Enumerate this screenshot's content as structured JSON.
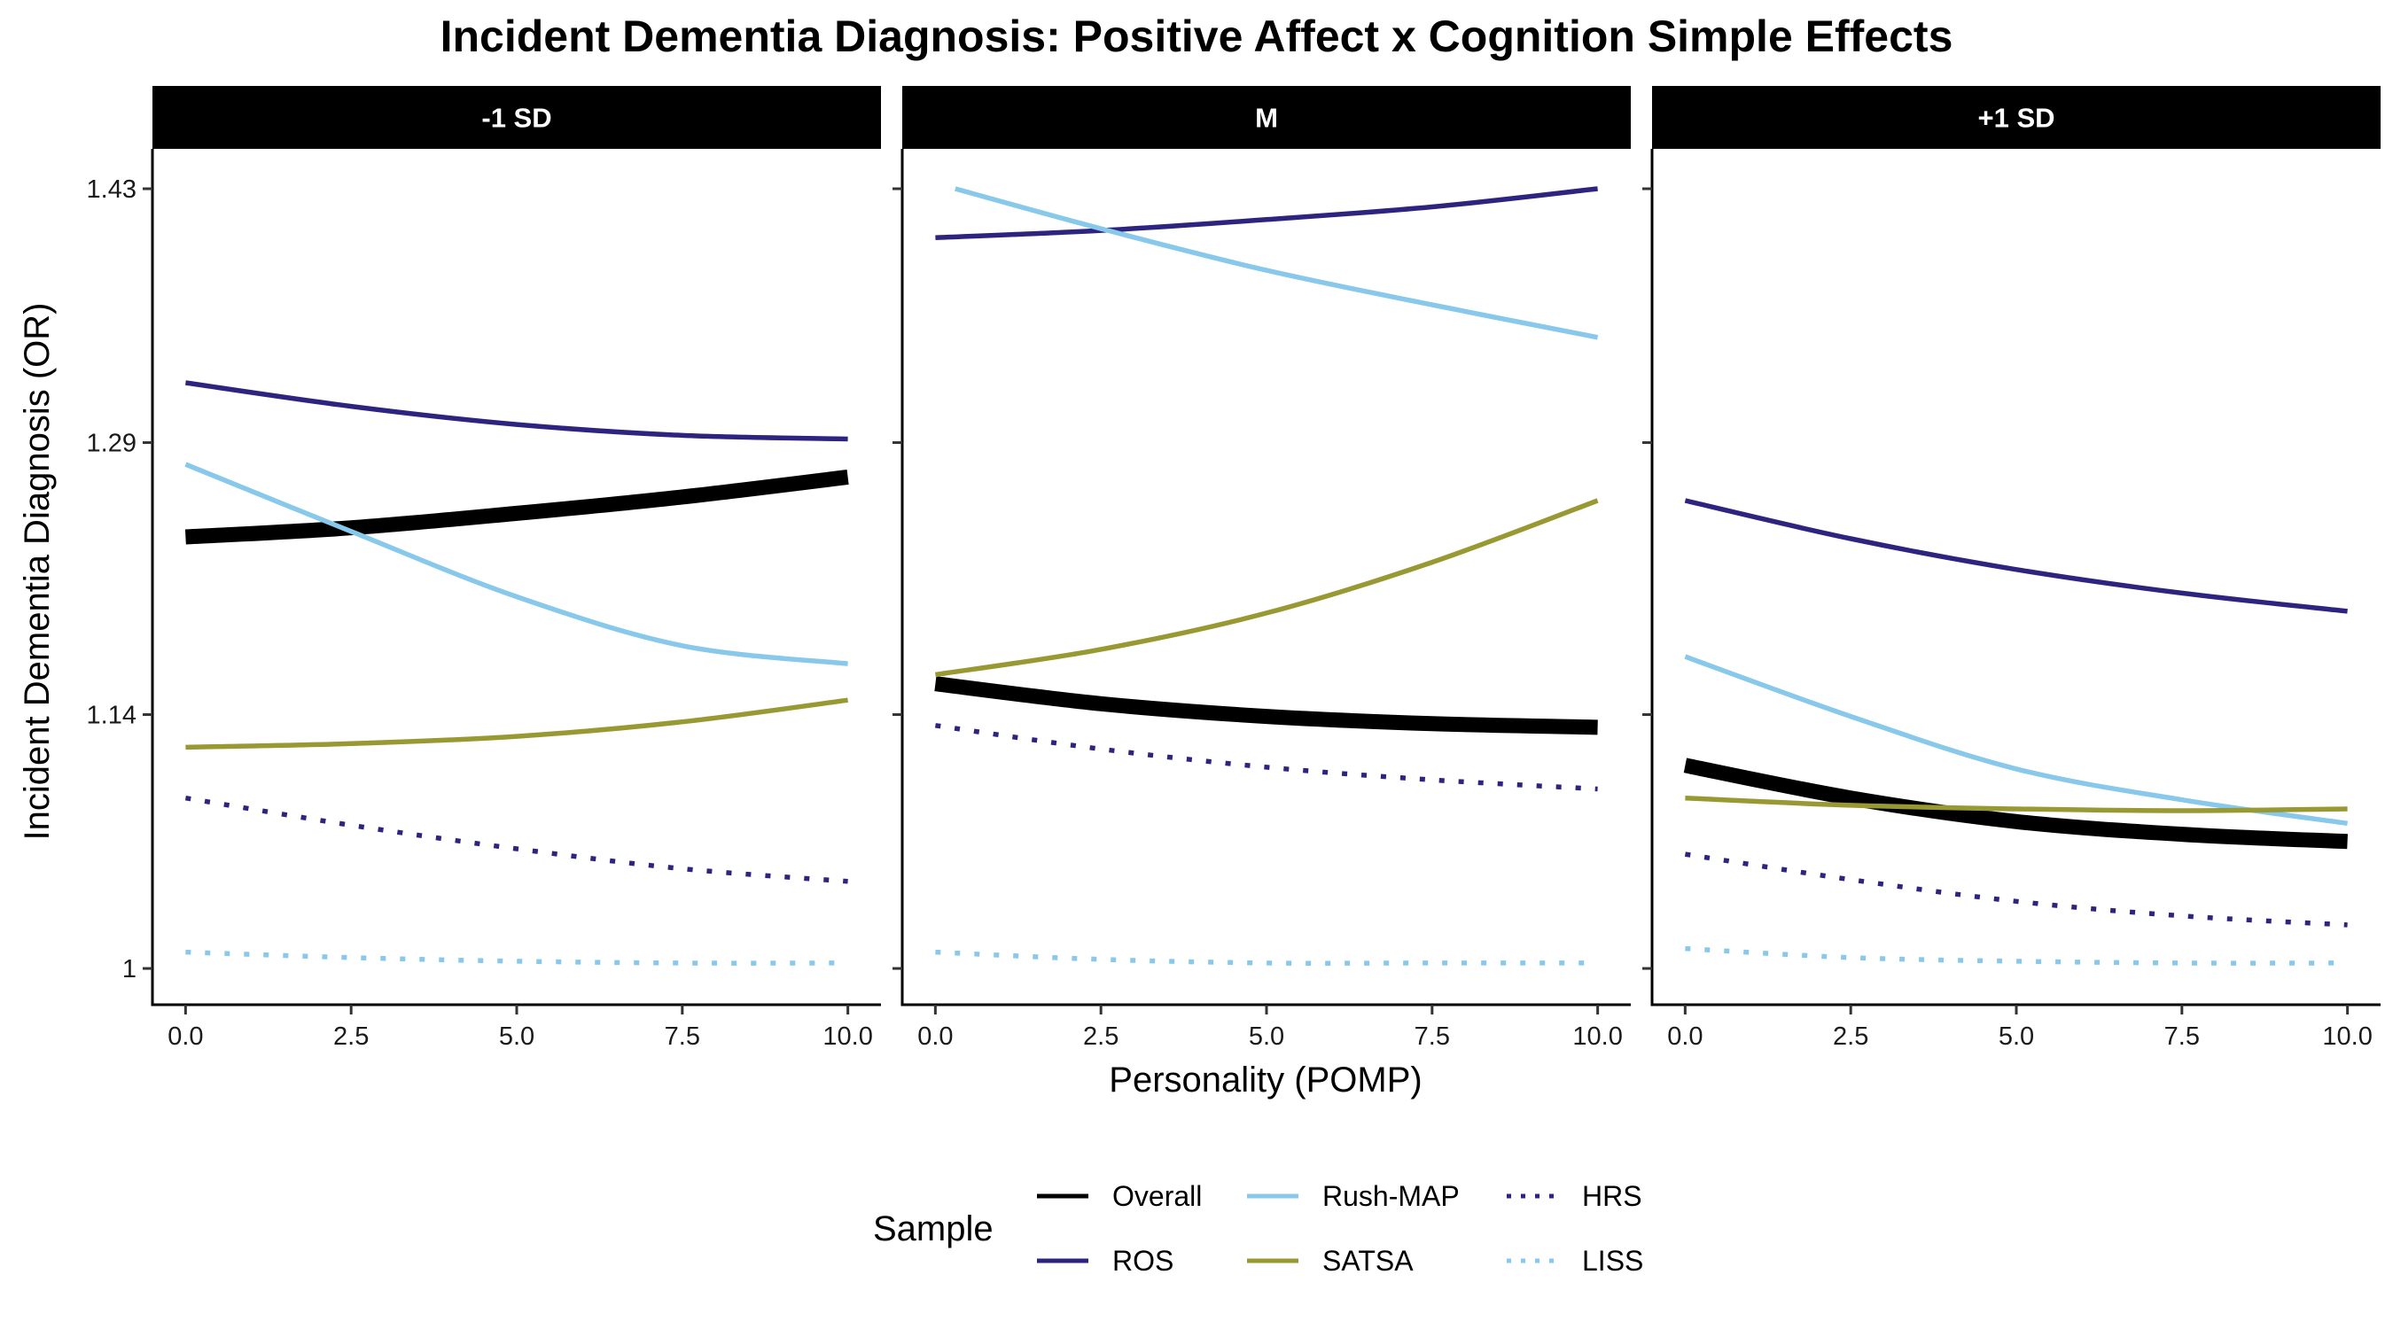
{
  "chart_data": {
    "type": "line",
    "title": "Incident Dementia Diagnosis: Positive Affect x Cognition Simple Effects",
    "xlabel": "Personality (POMP)",
    "ylabel": "Incident Dementia Diagnosis (OR)",
    "xlim": [
      -0.5,
      10.5
    ],
    "ylim": [
      0.98,
      1.452
    ],
    "x_ticks": [
      0,
      2.5,
      5,
      7.5,
      10
    ],
    "x_tick_labels": [
      "0.0",
      "2.5",
      "5.0",
      "7.5",
      "10.0"
    ],
    "y_ticks": [
      1,
      1.14,
      1.29,
      1.43
    ],
    "y_tick_labels": [
      "1",
      "1.14",
      "1.29",
      "1.43"
    ],
    "grid": false,
    "legend": {
      "title": "Sample",
      "placement": "bottom",
      "entries": [
        {
          "label": "Overall",
          "color": "#000000",
          "style": "solid"
        },
        {
          "label": "ROS",
          "color": "#2d2480",
          "style": "solid"
        },
        {
          "label": "Rush-MAP",
          "color": "#88c8ea",
          "style": "solid"
        },
        {
          "label": "SATSA",
          "color": "#999933",
          "style": "solid"
        },
        {
          "label": "HRS",
          "color": "#2d2480",
          "style": "dotted"
        },
        {
          "label": "LISS",
          "color": "#88c8ea",
          "style": "dotted"
        }
      ]
    },
    "panels": [
      {
        "label": "-1 SD",
        "series": [
          {
            "name": "Overall",
            "x": [
              0,
              2.5,
              5,
              7.5,
              10
            ],
            "y": [
              1.238,
              1.243,
              1.251,
              1.26,
              1.271
            ]
          },
          {
            "name": "ROS",
            "x": [
              0,
              2.5,
              5,
              7.5,
              10
            ],
            "y": [
              1.323,
              1.31,
              1.3,
              1.294,
              1.292
            ]
          },
          {
            "name": "Rush-MAP",
            "x": [
              0,
              2.5,
              5,
              7.5,
              10
            ],
            "y": [
              1.278,
              1.241,
              1.205,
              1.178,
              1.168
            ]
          },
          {
            "name": "SATSA",
            "x": [
              0,
              2.5,
              5,
              7.5,
              10
            ],
            "y": [
              1.122,
              1.124,
              1.128,
              1.136,
              1.148
            ]
          },
          {
            "name": "HRS",
            "x": [
              0,
              2.5,
              5,
              7.5,
              10
            ],
            "y": [
              1.094,
              1.079,
              1.066,
              1.055,
              1.048
            ]
          },
          {
            "name": "LISS",
            "x": [
              0,
              2.5,
              5,
              7.5,
              10
            ],
            "y": [
              1.009,
              1.006,
              1.004,
              1.003,
              1.003
            ]
          }
        ]
      },
      {
        "label": "M",
        "series": [
          {
            "name": "Overall",
            "x": [
              0,
              2.5,
              5,
              7.5,
              10
            ],
            "y": [
              1.157,
              1.146,
              1.139,
              1.135,
              1.133
            ]
          },
          {
            "name": "ROS",
            "x": [
              0,
              2.5,
              5,
              7.5,
              10
            ],
            "y": [
              1.403,
              1.407,
              1.413,
              1.42,
              1.43
            ]
          },
          {
            "name": "Rush-MAP",
            "x": [
              0.3,
              2.5,
              5,
              7.5,
              10
            ],
            "y": [
              1.43,
              1.408,
              1.385,
              1.366,
              1.348
            ]
          },
          {
            "name": "SATSA",
            "x": [
              0,
              2.5,
              5,
              7.5,
              10
            ],
            "y": [
              1.162,
              1.176,
              1.196,
              1.224,
              1.258
            ]
          },
          {
            "name": "HRS",
            "x": [
              0,
              2.5,
              5,
              7.5,
              10
            ],
            "y": [
              1.134,
              1.121,
              1.111,
              1.104,
              1.099
            ]
          },
          {
            "name": "LISS",
            "x": [
              0,
              2.5,
              5,
              7.5,
              10
            ],
            "y": [
              1.009,
              1.005,
              1.003,
              1.003,
              1.003
            ]
          }
        ]
      },
      {
        "label": "+1 SD",
        "series": [
          {
            "name": "Overall",
            "x": [
              0,
              2.5,
              5,
              7.5,
              10
            ],
            "y": [
              1.112,
              1.094,
              1.081,
              1.074,
              1.07
            ]
          },
          {
            "name": "ROS",
            "x": [
              0,
              2.5,
              5,
              7.5,
              10
            ],
            "y": [
              1.258,
              1.237,
              1.22,
              1.207,
              1.197
            ]
          },
          {
            "name": "Rush-MAP",
            "x": [
              0,
              2.5,
              5,
              7.5,
              10
            ],
            "y": [
              1.172,
              1.139,
              1.11,
              1.093,
              1.08
            ]
          },
          {
            "name": "SATSA",
            "x": [
              0,
              2.5,
              5,
              7.5,
              10
            ],
            "y": [
              1.094,
              1.09,
              1.088,
              1.087,
              1.088
            ]
          },
          {
            "name": "HRS",
            "x": [
              0,
              2.5,
              5,
              7.5,
              10
            ],
            "y": [
              1.063,
              1.049,
              1.037,
              1.029,
              1.024
            ]
          },
          {
            "name": "LISS",
            "x": [
              0,
              2.5,
              5,
              7.5,
              10
            ],
            "y": [
              1.011,
              1.006,
              1.004,
              1.003,
              1.003
            ]
          }
        ]
      }
    ]
  }
}
